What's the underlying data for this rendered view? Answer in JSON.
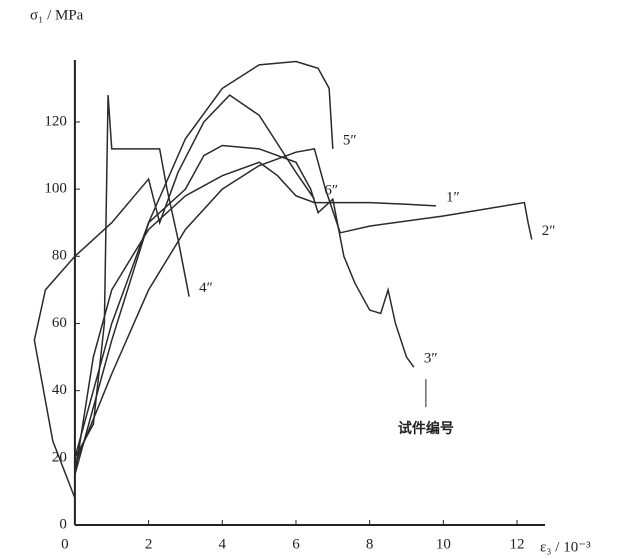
{
  "chart_data": {
    "type": "line",
    "xlabel": "ε₃ / 10⁻³",
    "ylabel": "σ₁ / MPa",
    "xlim": [
      -1.3,
      13.6
    ],
    "ylim": [
      0,
      145
    ],
    "xticks": [
      0,
      2,
      4,
      6,
      8,
      10,
      12
    ],
    "yticks": [
      0,
      20,
      40,
      60,
      80,
      100,
      120
    ],
    "annotation": "试件编号",
    "series": [
      {
        "name": "1″",
        "color": "#2a2a2a",
        "x": [
          0,
          0.5,
          1,
          2,
          3,
          4,
          5,
          5.5,
          6,
          6.5,
          7,
          8,
          9,
          9.8
        ],
        "values": [
          15,
          50,
          70,
          88,
          98,
          104,
          108,
          104,
          98,
          96,
          96,
          96,
          95.5,
          95
        ]
      },
      {
        "name": "2″",
        "color": "#2a2a2a",
        "x": [
          0,
          1,
          2,
          3,
          4,
          5,
          6,
          6.5,
          6.8,
          7.2,
          8,
          10,
          12.2,
          12.3,
          12.4
        ],
        "values": [
          18,
          45,
          70,
          88,
          100,
          107,
          111,
          112,
          100,
          87,
          89,
          92,
          96,
          90,
          85
        ]
      },
      {
        "name": "3″",
        "color": "#2a2a2a",
        "x": [
          0,
          1,
          2,
          3,
          3.5,
          4,
          5,
          6,
          6.4,
          6.6,
          7,
          7.3,
          7.6,
          8,
          8.3,
          8.5,
          8.7,
          9,
          9.2
        ],
        "values": [
          20,
          60,
          90,
          100,
          110,
          113,
          112,
          108,
          100,
          93,
          97,
          80,
          72,
          64,
          63,
          70,
          60,
          50,
          47
        ]
      },
      {
        "name": "4″",
        "color": "#2a2a2a",
        "x": [
          0,
          0.5,
          0.8,
          0.9,
          1,
          2,
          2.3,
          2.5,
          2.8,
          3.1
        ],
        "values": [
          20,
          30,
          60,
          128,
          112,
          112,
          112,
          100,
          85,
          68
        ]
      },
      {
        "name": "5″",
        "color": "#2a2a2a",
        "x": [
          0,
          1,
          2,
          3,
          4,
          5,
          6,
          6.6,
          6.9,
          7
        ],
        "values": [
          15,
          55,
          90,
          115,
          130,
          137,
          138,
          136,
          130,
          112
        ]
      },
      {
        "name": "6″",
        "color": "#2a2a2a",
        "x": [
          0,
          -0.6,
          -1.1,
          -0.8,
          0,
          1,
          2,
          2.3,
          2.8,
          3.5,
          4.2,
          5,
          6,
          6.5
        ],
        "values": [
          8,
          25,
          55,
          70,
          80,
          90,
          103,
          90,
          105,
          120,
          128,
          122,
          105,
          97
        ]
      }
    ]
  }
}
